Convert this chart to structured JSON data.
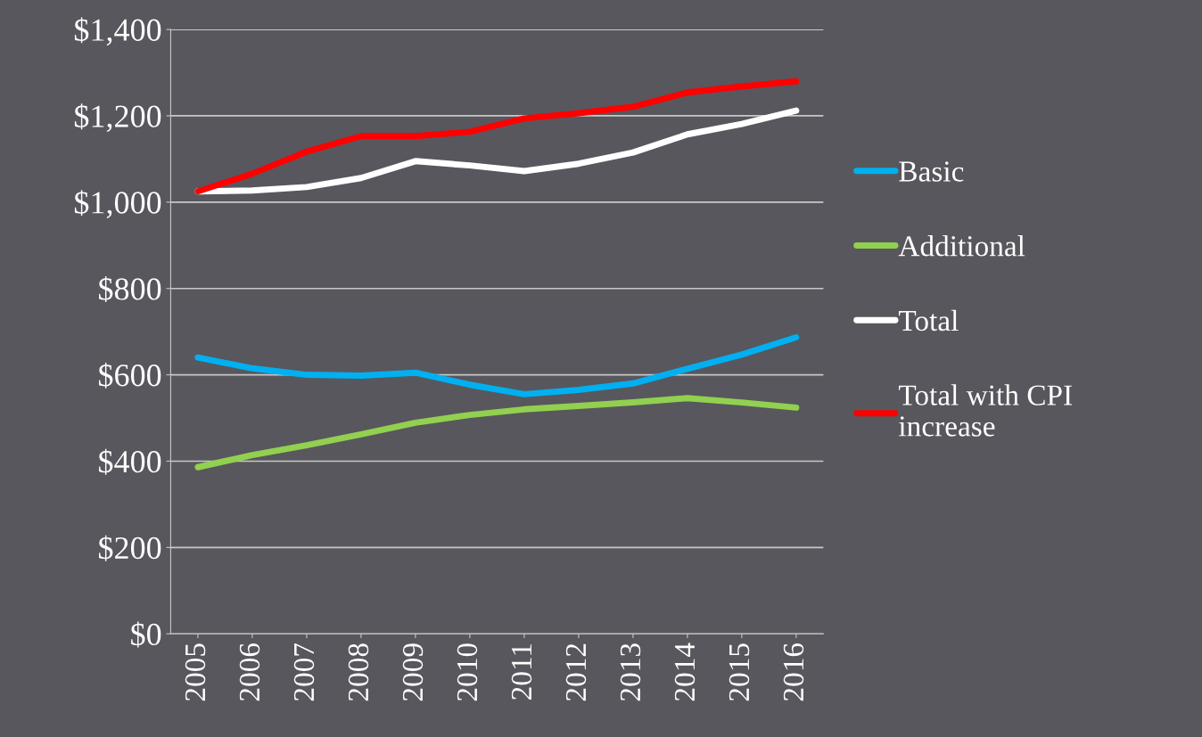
{
  "chart_data": {
    "type": "line",
    "categories": [
      "2005",
      "2006",
      "2007",
      "2008",
      "2009",
      "2010",
      "2011",
      "2012",
      "2013",
      "2014",
      "2015",
      "2016"
    ],
    "series": [
      {
        "name": "Basic",
        "color": "#00b0f0",
        "values": [
          640,
          615,
          600,
          598,
          605,
          577,
          555,
          565,
          580,
          614,
          647,
          687
        ]
      },
      {
        "name": "Additional",
        "color": "#92d050",
        "values": [
          386,
          414,
          437,
          462,
          489,
          507,
          520,
          528,
          536,
          546,
          536,
          524
        ]
      },
      {
        "name": "Total",
        "color": "#ffffff",
        "values": [
          1025,
          1027,
          1035,
          1056,
          1095,
          1085,
          1072,
          1089,
          1115,
          1157,
          1181,
          1212
        ]
      },
      {
        "name": "Total with CPI\nincrease",
        "color": "#ff0000",
        "values": [
          1025,
          1066,
          1117,
          1153,
          1153,
          1163,
          1194,
          1206,
          1221,
          1254,
          1268,
          1280
        ]
      }
    ],
    "ylim": [
      0,
      1400
    ],
    "yticks": [
      {
        "value": 0,
        "label": "$0"
      },
      {
        "value": 200,
        "label": "$200"
      },
      {
        "value": 400,
        "label": "$400"
      },
      {
        "value": 600,
        "label": "$600"
      },
      {
        "value": 800,
        "label": "$800"
      },
      {
        "value": 1000,
        "label": "$1,000"
      },
      {
        "value": 1200,
        "label": "$1,200"
      },
      {
        "value": 1400,
        "label": "$1,400"
      }
    ],
    "grid": "y",
    "legend": "right",
    "marker": "none",
    "line_style": "solid"
  }
}
